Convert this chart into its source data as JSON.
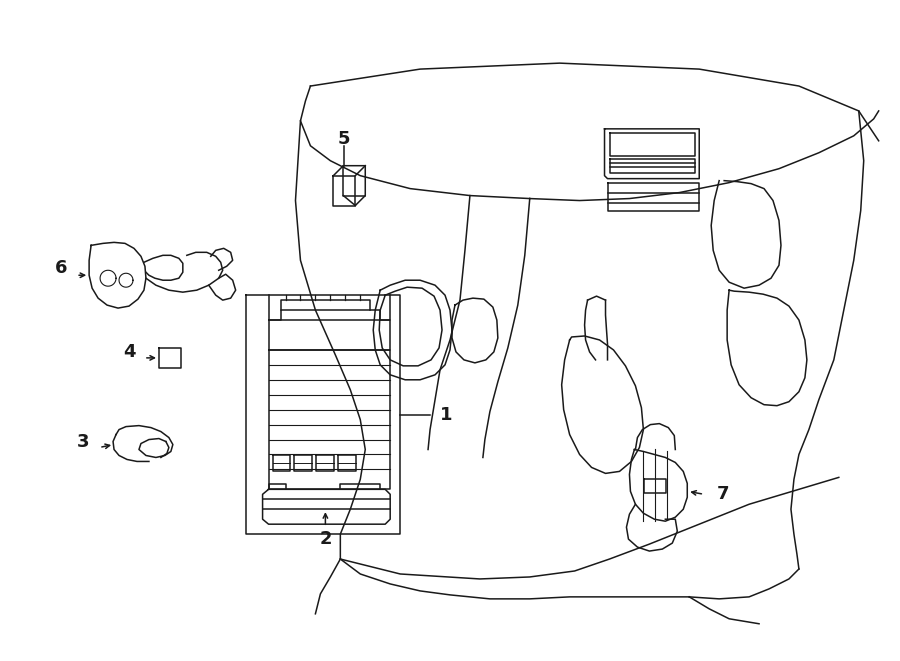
{
  "bg_color": "#ffffff",
  "line_color": "#1a1a1a",
  "lw": 1.1,
  "fig_w": 9.0,
  "fig_h": 6.61
}
